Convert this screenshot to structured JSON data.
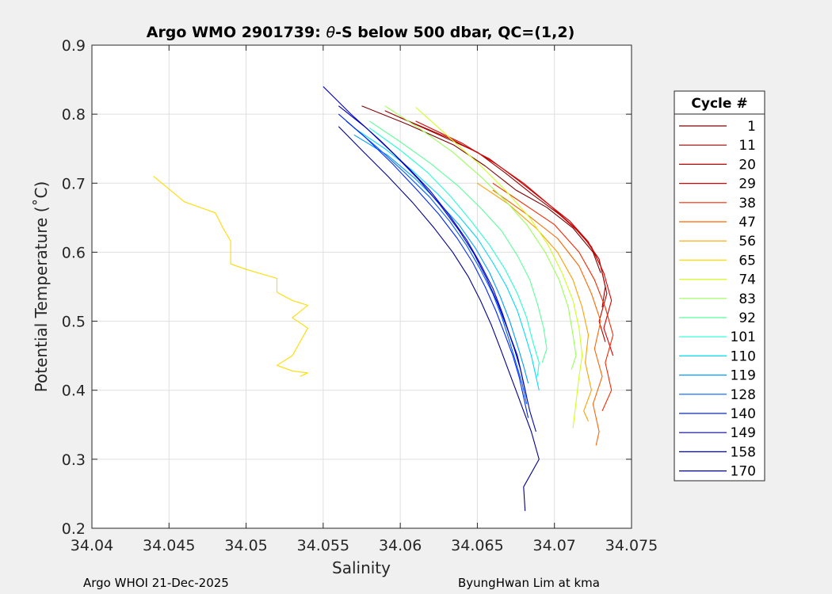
{
  "footer": {
    "left": "Argo WHOI 21-Dec-2025",
    "right": "ByungHwan Lim at kma"
  },
  "chart_data": {
    "type": "line",
    "title": {
      "prefix": "Argo WMO 2901739: ",
      "theta": "θ",
      "suffix": "-S below 500 dbar,  QC=(1,2)"
    },
    "xlabel": "Salinity",
    "ylabel": "Potential Temperature (˚C)",
    "xlim": [
      34.04,
      34.075
    ],
    "ylim": [
      0.2,
      0.9
    ],
    "xticks": [
      "34.04",
      "34.045",
      "34.05",
      "34.055",
      "34.06",
      "34.065",
      "34.07",
      "34.075"
    ],
    "xtick_values": [
      34.04,
      34.045,
      34.05,
      34.055,
      34.06,
      34.065,
      34.07,
      34.075
    ],
    "yticks": [
      "0.2",
      "0.3",
      "0.4",
      "0.5",
      "0.6",
      "0.7",
      "0.8",
      "0.9"
    ],
    "ytick_values": [
      0.2,
      0.3,
      0.4,
      0.5,
      0.6,
      0.7,
      0.8,
      0.9
    ],
    "grid": true,
    "legend": {
      "title": "Cycle #",
      "placement": "outside-right",
      "entries": [
        {
          "label": "1",
          "color": "#7f0000"
        },
        {
          "label": "11",
          "color": "#9a0000"
        },
        {
          "label": "20",
          "color": "#b80000"
        },
        {
          "label": "29",
          "color": "#db0000"
        },
        {
          "label": "38",
          "color": "#f52800"
        },
        {
          "label": "47",
          "color": "#ff6400"
        },
        {
          "label": "56",
          "color": "#ffa000"
        },
        {
          "label": "65",
          "color": "#ffdc00"
        },
        {
          "label": "74",
          "color": "#d0ff20"
        },
        {
          "label": "83",
          "color": "#9aff5a"
        },
        {
          "label": "92",
          "color": "#5cff9c"
        },
        {
          "label": "101",
          "color": "#24ffd4"
        },
        {
          "label": "110",
          "color": "#00d8ff"
        },
        {
          "label": "119",
          "color": "#009cff"
        },
        {
          "label": "128",
          "color": "#0060ff"
        },
        {
          "label": "140",
          "color": "#0024ff"
        },
        {
          "label": "149",
          "color": "#0000de"
        },
        {
          "label": "158",
          "color": "#0000b4"
        },
        {
          "label": "170",
          "color": "#00008f"
        }
      ]
    },
    "series": [
      {
        "name": "1",
        "color": "#7f0000",
        "points": [
          [
            34.0575,
            0.812
          ],
          [
            34.0605,
            0.785
          ],
          [
            34.0635,
            0.755
          ],
          [
            34.0655,
            0.725
          ],
          [
            34.0675,
            0.69
          ],
          [
            34.0695,
            0.665
          ],
          [
            34.0712,
            0.635
          ],
          [
            34.0725,
            0.6
          ],
          [
            34.073,
            0.57
          ]
        ]
      },
      {
        "name": "11",
        "color": "#9a0000",
        "points": [
          [
            34.059,
            0.805
          ],
          [
            34.062,
            0.775
          ],
          [
            34.065,
            0.745
          ],
          [
            34.0668,
            0.715
          ],
          [
            34.0685,
            0.685
          ],
          [
            34.0703,
            0.655
          ],
          [
            34.0718,
            0.625
          ],
          [
            34.0729,
            0.59
          ],
          [
            34.0733,
            0.55
          ],
          [
            34.0731,
            0.52
          ]
        ]
      },
      {
        "name": "20",
        "color": "#b80000",
        "points": [
          [
            34.06,
            0.795
          ],
          [
            34.0632,
            0.765
          ],
          [
            34.0658,
            0.735
          ],
          [
            34.0676,
            0.705
          ],
          [
            34.0693,
            0.675
          ],
          [
            34.071,
            0.645
          ],
          [
            34.0722,
            0.615
          ],
          [
            34.073,
            0.58
          ],
          [
            34.0734,
            0.54
          ],
          [
            34.0729,
            0.5
          ],
          [
            34.0733,
            0.47
          ]
        ]
      },
      {
        "name": "29",
        "color": "#db0000",
        "points": [
          [
            34.061,
            0.79
          ],
          [
            34.064,
            0.758
          ],
          [
            34.0662,
            0.728
          ],
          [
            34.068,
            0.7
          ],
          [
            34.0697,
            0.668
          ],
          [
            34.0712,
            0.638
          ],
          [
            34.0724,
            0.608
          ],
          [
            34.0732,
            0.57
          ],
          [
            34.0737,
            0.53
          ],
          [
            34.0732,
            0.49
          ],
          [
            34.0738,
            0.45
          ]
        ]
      },
      {
        "name": "38",
        "color": "#f52800",
        "points": [
          [
            34.066,
            0.7
          ],
          [
            34.068,
            0.67
          ],
          [
            34.07,
            0.64
          ],
          [
            34.0716,
            0.6
          ],
          [
            34.0726,
            0.56
          ],
          [
            34.0733,
            0.52
          ],
          [
            34.0738,
            0.48
          ],
          [
            34.0733,
            0.44
          ],
          [
            34.0737,
            0.4
          ],
          [
            34.0731,
            0.37
          ]
        ]
      },
      {
        "name": "47",
        "color": "#ff6400",
        "points": [
          [
            34.066,
            0.69
          ],
          [
            34.0682,
            0.655
          ],
          [
            34.0702,
            0.62
          ],
          [
            34.0716,
            0.58
          ],
          [
            34.0724,
            0.54
          ],
          [
            34.073,
            0.5
          ],
          [
            34.0726,
            0.46
          ],
          [
            34.0731,
            0.42
          ],
          [
            34.0725,
            0.38
          ],
          [
            34.0729,
            0.34
          ],
          [
            34.0727,
            0.32
          ]
        ]
      },
      {
        "name": "56",
        "color": "#ffa000",
        "points": [
          [
            34.065,
            0.7
          ],
          [
            34.067,
            0.67
          ],
          [
            34.0688,
            0.635
          ],
          [
            34.0702,
            0.6
          ],
          [
            34.0712,
            0.56
          ],
          [
            34.0718,
            0.52
          ],
          [
            34.0722,
            0.48
          ],
          [
            34.072,
            0.44
          ],
          [
            34.0724,
            0.4
          ],
          [
            34.0719,
            0.37
          ],
          [
            34.0722,
            0.355
          ]
        ]
      },
      {
        "name": "65",
        "color": "#ffdc00",
        "points": [
          [
            34.044,
            0.71
          ],
          [
            34.046,
            0.673
          ],
          [
            34.048,
            0.657
          ],
          [
            34.0485,
            0.635
          ],
          [
            34.049,
            0.616
          ],
          [
            34.049,
            0.583
          ],
          [
            34.05,
            0.575
          ],
          [
            34.052,
            0.562
          ],
          [
            34.052,
            0.542
          ],
          [
            34.053,
            0.53
          ],
          [
            34.054,
            0.523
          ],
          [
            34.053,
            0.505
          ],
          [
            34.054,
            0.49
          ],
          [
            34.053,
            0.45
          ],
          [
            34.052,
            0.436
          ],
          [
            34.053,
            0.428
          ],
          [
            34.054,
            0.425
          ],
          [
            34.0535,
            0.42
          ]
        ]
      },
      {
        "name": "74",
        "color": "#d0ff20",
        "points": [
          [
            34.061,
            0.81
          ],
          [
            34.063,
            0.77
          ],
          [
            34.065,
            0.73
          ],
          [
            34.0668,
            0.69
          ],
          [
            34.0684,
            0.65
          ],
          [
            34.0696,
            0.61
          ],
          [
            34.0705,
            0.57
          ],
          [
            34.0712,
            0.53
          ],
          [
            34.0716,
            0.49
          ],
          [
            34.0718,
            0.45
          ],
          [
            34.0716,
            0.42
          ],
          [
            34.0712,
            0.345
          ]
        ]
      },
      {
        "name": "83",
        "color": "#9aff5a",
        "points": [
          [
            34.059,
            0.812
          ],
          [
            34.0612,
            0.78
          ],
          [
            34.0634,
            0.745
          ],
          [
            34.0652,
            0.71
          ],
          [
            34.0668,
            0.675
          ],
          [
            34.0682,
            0.64
          ],
          [
            34.0694,
            0.6
          ],
          [
            34.0703,
            0.56
          ],
          [
            34.0709,
            0.52
          ],
          [
            34.0712,
            0.48
          ],
          [
            34.0714,
            0.45
          ],
          [
            34.0711,
            0.43
          ]
        ]
      },
      {
        "name": "92",
        "color": "#5cff9c",
        "points": [
          [
            34.058,
            0.79
          ],
          [
            34.06,
            0.76
          ],
          [
            34.062,
            0.728
          ],
          [
            34.0638,
            0.695
          ],
          [
            34.0653,
            0.662
          ],
          [
            34.0666,
            0.63
          ],
          [
            34.0676,
            0.595
          ],
          [
            34.0684,
            0.56
          ],
          [
            34.0689,
            0.525
          ],
          [
            34.0693,
            0.49
          ],
          [
            34.0695,
            0.46
          ],
          [
            34.0692,
            0.44
          ]
        ]
      },
      {
        "name": "101",
        "color": "#24ffd4",
        "points": [
          [
            34.058,
            0.78
          ],
          [
            34.06,
            0.748
          ],
          [
            34.0618,
            0.715
          ],
          [
            34.0633,
            0.68
          ],
          [
            34.0646,
            0.645
          ],
          [
            34.0658,
            0.61
          ],
          [
            34.0668,
            0.575
          ],
          [
            34.0676,
            0.54
          ],
          [
            34.0682,
            0.505
          ],
          [
            34.0686,
            0.47
          ],
          [
            34.069,
            0.44
          ],
          [
            34.0689,
            0.42
          ]
        ]
      },
      {
        "name": "110",
        "color": "#00d8ff",
        "points": [
          [
            34.057,
            0.78
          ],
          [
            34.059,
            0.75
          ],
          [
            34.0608,
            0.718
          ],
          [
            34.0624,
            0.685
          ],
          [
            34.0638,
            0.652
          ],
          [
            34.065,
            0.62
          ],
          [
            34.066,
            0.585
          ],
          [
            34.0669,
            0.55
          ],
          [
            34.0676,
            0.515
          ],
          [
            34.0681,
            0.48
          ],
          [
            34.0685,
            0.45
          ],
          [
            34.0688,
            0.42
          ],
          [
            34.069,
            0.4
          ]
        ]
      },
      {
        "name": "119",
        "color": "#009cff",
        "points": [
          [
            34.057,
            0.77
          ],
          [
            34.0592,
            0.74
          ],
          [
            34.061,
            0.706
          ],
          [
            34.0625,
            0.672
          ],
          [
            34.0638,
            0.64
          ],
          [
            34.0649,
            0.605
          ],
          [
            34.0658,
            0.57
          ],
          [
            34.0665,
            0.535
          ],
          [
            34.0671,
            0.5
          ],
          [
            34.0676,
            0.465
          ],
          [
            34.068,
            0.435
          ],
          [
            34.0683,
            0.41
          ]
        ]
      },
      {
        "name": "128",
        "color": "#0060ff",
        "points": [
          [
            34.0565,
            0.79
          ],
          [
            34.0585,
            0.752
          ],
          [
            34.0603,
            0.715
          ],
          [
            34.0619,
            0.68
          ],
          [
            34.0632,
            0.645
          ],
          [
            34.0643,
            0.61
          ],
          [
            34.0652,
            0.575
          ],
          [
            34.066,
            0.54
          ],
          [
            34.0666,
            0.505
          ],
          [
            34.0671,
            0.47
          ],
          [
            34.0675,
            0.44
          ],
          [
            34.0679,
            0.41
          ],
          [
            34.0682,
            0.38
          ]
        ]
      },
      {
        "name": "140",
        "color": "#0024ff",
        "points": [
          [
            34.056,
            0.8
          ],
          [
            34.0578,
            0.765
          ],
          [
            34.0595,
            0.728
          ],
          [
            34.0611,
            0.69
          ],
          [
            34.0625,
            0.655
          ],
          [
            34.0637,
            0.62
          ],
          [
            34.0647,
            0.585
          ],
          [
            34.0655,
            0.55
          ],
          [
            34.0662,
            0.515
          ],
          [
            34.0668,
            0.48
          ],
          [
            34.0673,
            0.45
          ],
          [
            34.0677,
            0.42
          ],
          [
            34.068,
            0.39
          ],
          [
            34.0683,
            0.36
          ]
        ]
      },
      {
        "name": "149",
        "color": "#0000de",
        "points": [
          [
            34.055,
            0.84
          ],
          [
            34.0568,
            0.8
          ],
          [
            34.0587,
            0.762
          ],
          [
            34.0604,
            0.725
          ],
          [
            34.0619,
            0.69
          ],
          [
            34.0632,
            0.653
          ],
          [
            34.0643,
            0.618
          ],
          [
            34.0652,
            0.583
          ],
          [
            34.066,
            0.548
          ],
          [
            34.0666,
            0.513
          ],
          [
            34.0671,
            0.48
          ],
          [
            34.0676,
            0.45
          ],
          [
            34.0679,
            0.42
          ],
          [
            34.0682,
            0.39
          ]
        ]
      },
      {
        "name": "158",
        "color": "#0000b4",
        "points": [
          [
            34.056,
            0.812
          ],
          [
            34.0578,
            0.78
          ],
          [
            34.0596,
            0.742
          ],
          [
            34.0612,
            0.705
          ],
          [
            34.0626,
            0.668
          ],
          [
            34.0638,
            0.632
          ],
          [
            34.0648,
            0.597
          ],
          [
            34.0656,
            0.562
          ],
          [
            34.0663,
            0.527
          ],
          [
            34.0669,
            0.492
          ],
          [
            34.0674,
            0.46
          ],
          [
            34.0678,
            0.43
          ],
          [
            34.0681,
            0.4
          ],
          [
            34.0684,
            0.37
          ],
          [
            34.0688,
            0.34
          ]
        ]
      },
      {
        "name": "170",
        "color": "#00008f",
        "points": [
          [
            34.056,
            0.782
          ],
          [
            34.0575,
            0.748
          ],
          [
            34.0592,
            0.71
          ],
          [
            34.0608,
            0.672
          ],
          [
            34.0622,
            0.635
          ],
          [
            34.0634,
            0.6
          ],
          [
            34.0644,
            0.565
          ],
          [
            34.0652,
            0.53
          ],
          [
            34.0659,
            0.495
          ],
          [
            34.0665,
            0.46
          ],
          [
            34.067,
            0.43
          ],
          [
            34.0675,
            0.4
          ],
          [
            34.068,
            0.37
          ],
          [
            34.0685,
            0.34
          ],
          [
            34.069,
            0.3
          ],
          [
            34.068,
            0.26
          ],
          [
            34.0681,
            0.225
          ]
        ]
      }
    ]
  }
}
